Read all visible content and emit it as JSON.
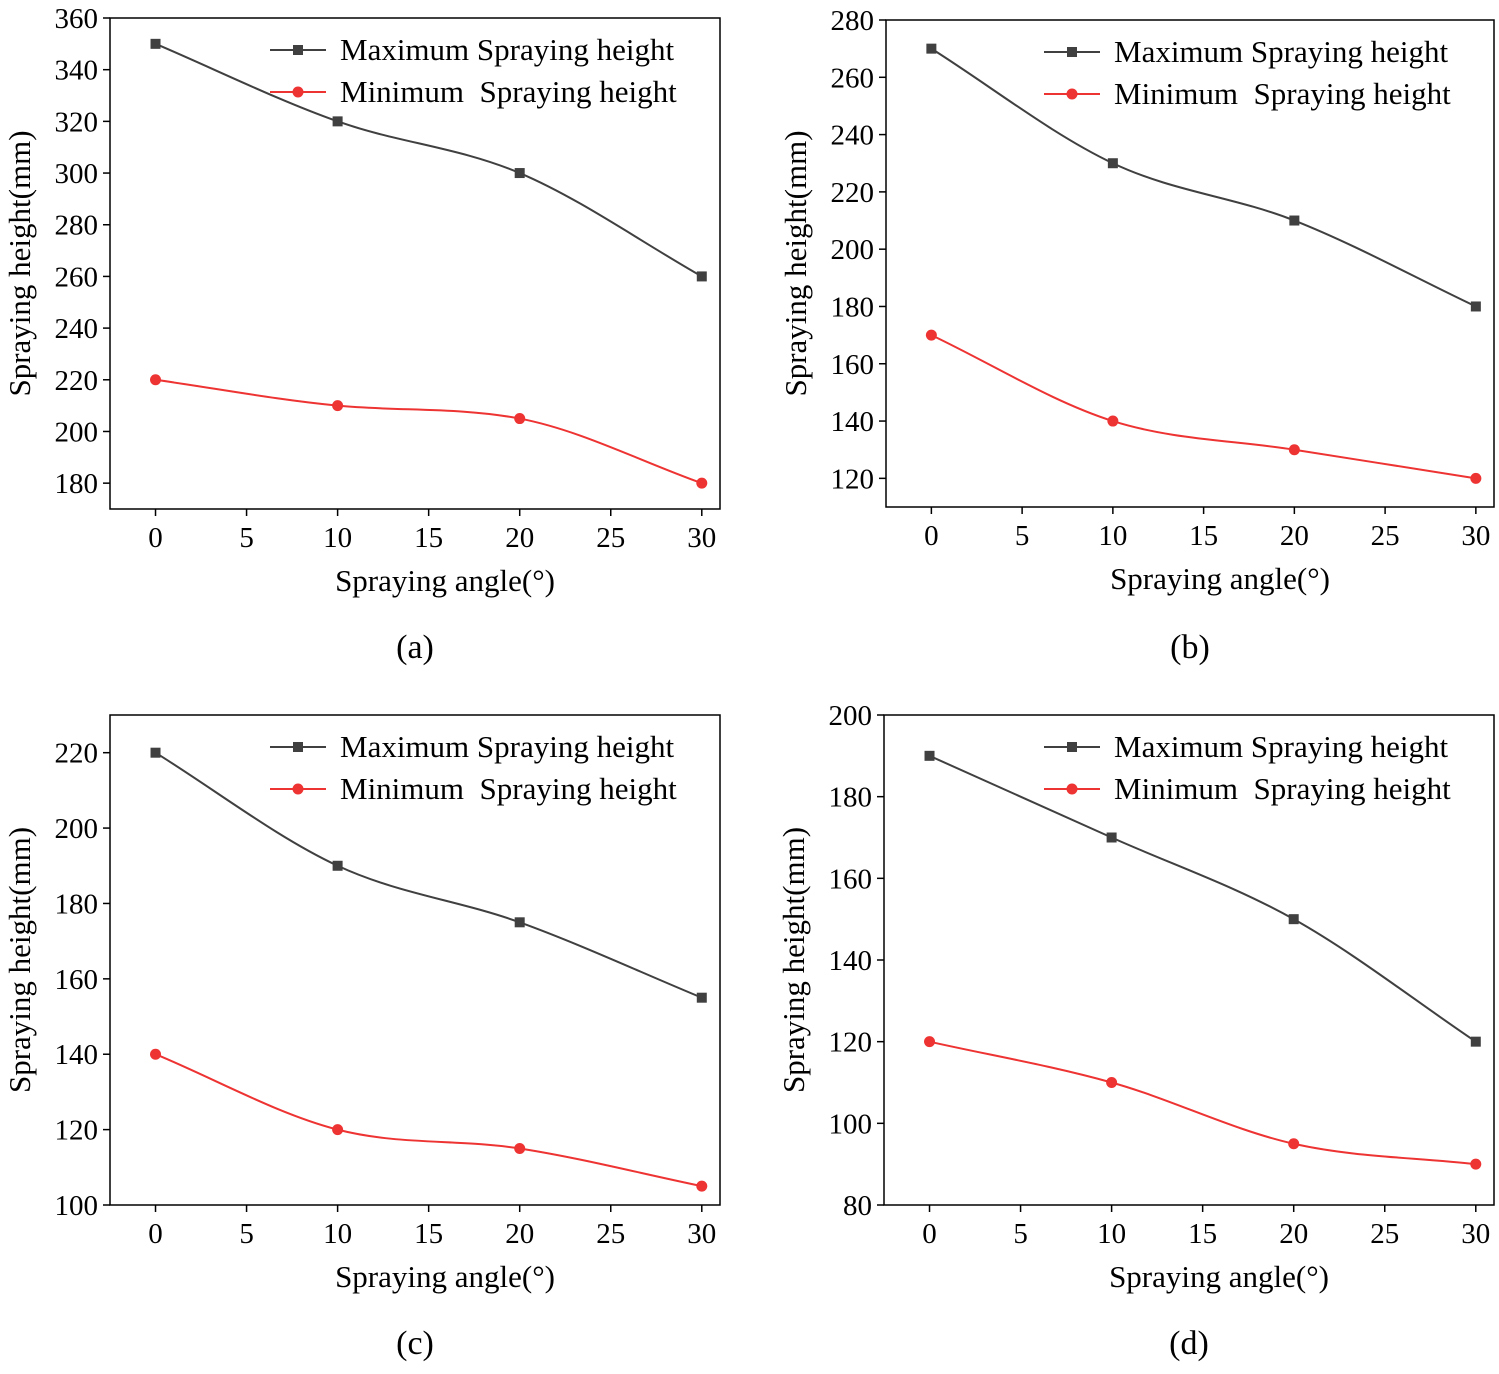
{
  "chart_data": [
    {
      "type": "line",
      "panel_label": "(a)",
      "xlabel": "Spraying angle(°)",
      "ylabel": "Spraying height(mm)",
      "xlim": [
        -2.5,
        31
      ],
      "ylim": [
        170,
        360
      ],
      "xticks": [
        0,
        5,
        10,
        15,
        20,
        25,
        30
      ],
      "yticks": [
        180,
        200,
        220,
        240,
        260,
        280,
        300,
        320,
        340,
        360
      ],
      "x": [
        0,
        10,
        20,
        30
      ],
      "series": [
        {
          "name": "Maximum Spraying height",
          "color": "#404040",
          "marker": "square",
          "values": [
            350,
            320,
            300,
            260
          ]
        },
        {
          "name": "Minimum  Spraying height",
          "color": "#ee3333",
          "marker": "circle",
          "values": [
            220,
            210,
            205,
            180
          ]
        }
      ],
      "legend_position": "top-right"
    },
    {
      "type": "line",
      "panel_label": "(b)",
      "xlabel": "Spraying angle(°)",
      "ylabel": "Spraying height(mm)",
      "xlim": [
        -2.5,
        31
      ],
      "ylim": [
        110,
        280
      ],
      "xticks": [
        0,
        5,
        10,
        15,
        20,
        25,
        30
      ],
      "yticks": [
        120,
        140,
        160,
        180,
        200,
        220,
        240,
        260,
        280
      ],
      "x": [
        0,
        10,
        20,
        30
      ],
      "series": [
        {
          "name": "Maximum Spraying height",
          "color": "#404040",
          "marker": "square",
          "values": [
            270,
            230,
            210,
            180
          ]
        },
        {
          "name": "Minimum  Spraying height",
          "color": "#ee3333",
          "marker": "circle",
          "values": [
            170,
            140,
            130,
            120
          ]
        }
      ],
      "legend_position": "top-right"
    },
    {
      "type": "line",
      "panel_label": "(c)",
      "xlabel": "Spraying angle(°)",
      "ylabel": "Spraying height(mm)",
      "xlim": [
        -2.5,
        31
      ],
      "ylim": [
        100,
        230
      ],
      "xticks": [
        0,
        5,
        10,
        15,
        20,
        25,
        30
      ],
      "yticks": [
        100,
        120,
        140,
        160,
        180,
        200,
        220
      ],
      "x": [
        0,
        10,
        20,
        30
      ],
      "series": [
        {
          "name": "Maximum Spraying height",
          "color": "#404040",
          "marker": "square",
          "values": [
            220,
            190,
            175,
            155
          ]
        },
        {
          "name": "Minimum  Spraying height",
          "color": "#ee3333",
          "marker": "circle",
          "values": [
            140,
            120,
            115,
            105
          ]
        }
      ],
      "legend_position": "top-right"
    },
    {
      "type": "line",
      "panel_label": "(d)",
      "xlabel": "Spraying angle(°)",
      "ylabel": "Spraying height(mm)",
      "xlim": [
        -2.5,
        31
      ],
      "ylim": [
        80,
        200
      ],
      "xticks": [
        0,
        5,
        10,
        15,
        20,
        25,
        30
      ],
      "yticks": [
        80,
        100,
        120,
        140,
        160,
        180,
        200
      ],
      "x": [
        0,
        10,
        20,
        30
      ],
      "series": [
        {
          "name": "Maximum Spraying height",
          "color": "#404040",
          "marker": "square",
          "values": [
            190,
            170,
            150,
            120
          ]
        },
        {
          "name": "Minimum  Spraying height",
          "color": "#ee3333",
          "marker": "circle",
          "values": [
            120,
            110,
            95,
            90
          ]
        }
      ],
      "legend_position": "top-right"
    }
  ]
}
